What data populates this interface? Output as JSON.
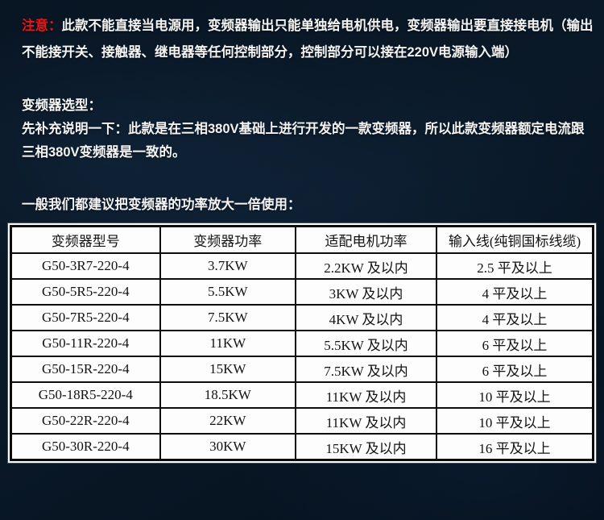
{
  "colors": {
    "background_dark_navy": "#0a1928",
    "notice_red": "#f31111",
    "body_text_white": "#f4f4f4",
    "table_background": "#fdfdfd",
    "table_border_black": "#0c0c0c",
    "table_text_black": "#121212"
  },
  "notice": {
    "label": "注意：",
    "text": "此款不能直接当电源用，变频器输出只能单独给电机供电，变频器输出要直接接电机（输出不能接开关、接触器、继电器等任何控制部分，控制部分可以接在220V电源输入端）"
  },
  "selection": {
    "title": "变频器选型：",
    "body": "先补充说明一下：此款是在三相380V基础上进行开发的一款变频器，所以此款变频器额定电流跟三相380V变频器是一致的。"
  },
  "table_intro": "一般我们都建议把变频器的功率放大一倍使用：",
  "spec_table": {
    "headers": [
      "变频器型号",
      "变频器功率",
      "适配电机功率",
      "输入线(纯铜国标线缆)"
    ],
    "rows": [
      [
        "G50-3R7-220-4",
        "3.7KW",
        "2.2KW 及以内",
        "2.5 平及以上"
      ],
      [
        "G50-5R5-220-4",
        "5.5KW",
        "3KW 及以内",
        "4 平及以上"
      ],
      [
        "G50-7R5-220-4",
        "7.5KW",
        "4KW 及以内",
        "4 平及以上"
      ],
      [
        "G50-11R-220-4",
        "11KW",
        "5.5KW 及以内",
        "6 平及以上"
      ],
      [
        "G50-15R-220-4",
        "15KW",
        "7.5KW 及以内",
        "6 平及以上"
      ],
      [
        "G50-18R5-220-4",
        "18.5KW",
        "11KW 及以内",
        "10 平及以上"
      ],
      [
        "G50-22R-220-4",
        "22KW",
        "11KW 及以内",
        "10 平及以上"
      ],
      [
        "G50-30R-220-4",
        "30KW",
        "15KW 及以内",
        "16 平及以上"
      ]
    ]
  }
}
